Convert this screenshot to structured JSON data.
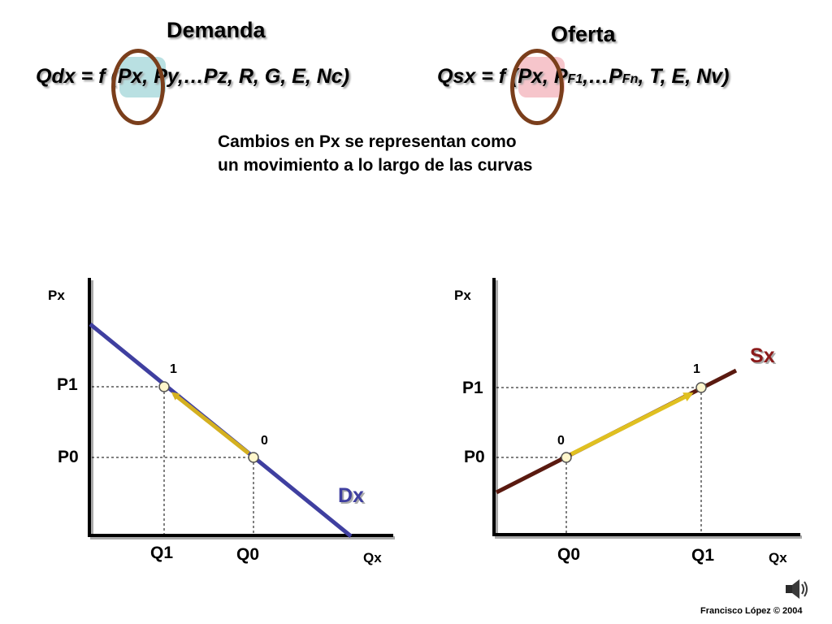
{
  "demand": {
    "heading": "Demanda",
    "formula": {
      "lhs": "Qdx = f (",
      "px": "Px,",
      "rest": " Py,…Pz, R, G, E, Nc)"
    },
    "highlight_color": "#b9e0e2"
  },
  "supply": {
    "heading": "Oferta",
    "formula": {
      "lhs": "Qsx = f (",
      "px": "Px,",
      "mid": " P",
      "f1": "F1",
      "dots": ",…P",
      "fn": "Fn",
      "rest": ", T, E, Nv)"
    },
    "highlight_color": "#f6c5cb"
  },
  "ring_color": "#7a3e1b",
  "note": {
    "line1": "Cambios en Px se representan como",
    "line2": "un movimiento a lo largo de las curvas"
  },
  "graph_demand": {
    "y_axis": "Px",
    "x_axis": "Qx",
    "p1": "P1",
    "p0": "P0",
    "q1": "Q1",
    "q0": "Q0",
    "curve_label": "Dx",
    "curve_color": "#3f3fa0",
    "point1_label": "1",
    "point0_label": "0",
    "arrow_color": "#d4b020"
  },
  "graph_supply": {
    "y_axis": "Px",
    "x_axis": "Qx",
    "p1": "P1",
    "p0": "P0",
    "q1": "Q1",
    "q0": "Q0",
    "curve_label": "Sx",
    "curve_color": "#5a1a10",
    "label_color": "#8b1a1a",
    "point1_label": "1",
    "point0_label": "0",
    "arrow_color": "#e0c020"
  },
  "speaker_icon": "speaker-icon",
  "credit": "Francisco López © 2004"
}
